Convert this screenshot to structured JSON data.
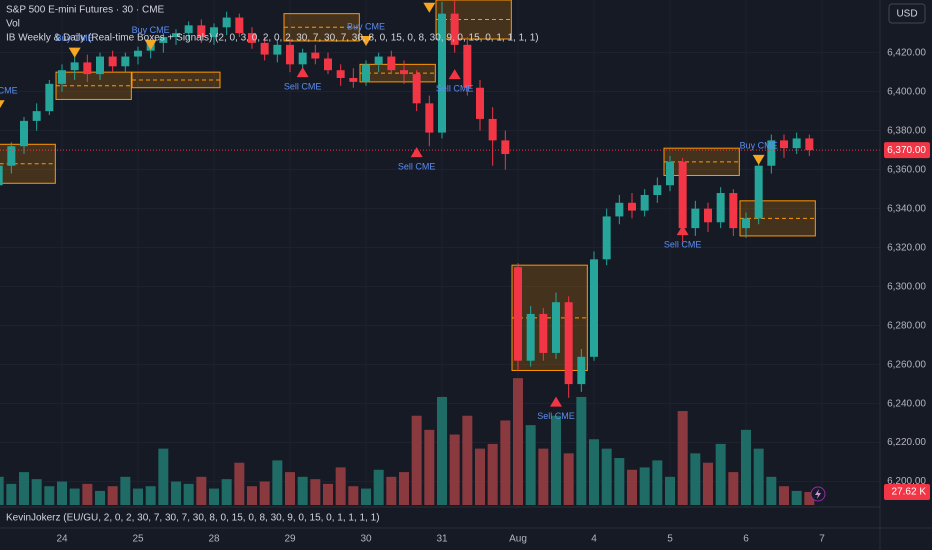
{
  "chart_data": {
    "type": "candlestick",
    "title": "S&P 500 E-mini Futures · 30 · CME",
    "volume_title": "Vol",
    "indicator_title": "IB Weekly & Daily (Real-time Boxes + Signals) (2, 0, 3, 0, 2, 0, 2, 30, 7, 30, 7, 30, 8, 0, 15, 0, 8, 30, 9, 0, 15, 0, 1, 1, 1, 1)",
    "lower_indicator_title": "KevinJokerz (EU/GU, 2, 0, 2, 30, 7, 30, 7, 30, 8, 0, 15, 0, 8, 30, 9, 0, 15, 0, 1, 1, 1, 1)",
    "currency": "USD",
    "categories": [
      null,
      null,
      null,
      null,
      null,
      "24",
      null,
      null,
      null,
      null,
      null,
      "25",
      null,
      null,
      null,
      null,
      null,
      "28",
      null,
      null,
      null,
      null,
      null,
      "29",
      null,
      null,
      null,
      null,
      null,
      "30",
      null,
      null,
      null,
      null,
      null,
      "31",
      null,
      null,
      null,
      null,
      null,
      "Aug",
      null,
      null,
      null,
      null,
      null,
      "4",
      null,
      null,
      null,
      null,
      null,
      "5",
      null,
      null,
      null,
      null,
      null,
      "6",
      null,
      null,
      null,
      null,
      null,
      "7"
    ],
    "open": [
      6352,
      6362,
      6372,
      6385,
      6390,
      6404,
      6411,
      6415,
      6409,
      6418,
      6413,
      6418,
      6421,
      6425,
      6428,
      6430,
      6434,
      6428,
      6433,
      6438,
      6430,
      6425,
      6419,
      6424,
      6414,
      6420,
      6417,
      6411,
      6407,
      6405,
      6414,
      6418,
      6411,
      6409,
      6394,
      6379,
      6440,
      6424,
      6402,
      6386,
      6375,
      6310,
      6262,
      6286,
      6266,
      6292,
      6250,
      6264,
      6314,
      6336,
      6343,
      6339,
      6347,
      6352,
      6364,
      6330,
      6340,
      6333,
      6348,
      6330,
      6335,
      6362,
      6375,
      6371,
      6376,
      null
    ],
    "high": [
      6364,
      6374,
      6387,
      6394,
      6406,
      6414,
      6418,
      6419,
      6420,
      6421,
      6420,
      6423,
      6427,
      6430,
      6432,
      6436,
      6437,
      6435,
      6441,
      6440,
      6433,
      6428,
      6427,
      6427,
      6422,
      6424,
      6420,
      6414,
      6412,
      6416,
      6420,
      6421,
      6416,
      6411,
      6398,
      6446,
      6447,
      6428,
      6406,
      6392,
      6380,
      6312,
      6290,
      6289,
      6297,
      6295,
      6268,
      6318,
      6340,
      6347,
      6348,
      6350,
      6356,
      6367,
      6366,
      6344,
      6343,
      6351,
      6350,
      6338,
      6366,
      6378,
      6378,
      6379,
      6378,
      null
    ],
    "low": [
      6348,
      6358,
      6368,
      6380,
      6388,
      6400,
      6406,
      6405,
      6406,
      6410,
      6410,
      6414,
      6417,
      6420,
      6424,
      6427,
      6425,
      6424,
      6429,
      6428,
      6422,
      6416,
      6415,
      6410,
      6410,
      6414,
      6409,
      6403,
      6402,
      6403,
      6410,
      6409,
      6404,
      6390,
      6372,
      6376,
      6420,
      6398,
      6380,
      6362,
      6360,
      6257,
      6259,
      6262,
      6263,
      6243,
      6246,
      6262,
      6311,
      6332,
      6335,
      6336,
      6343,
      6349,
      6322,
      6326,
      6328,
      6330,
      6326,
      6325,
      6332,
      6358,
      6366,
      6368,
      6367,
      null
    ],
    "close": [
      6362,
      6372,
      6385,
      6390,
      6404,
      6411,
      6415,
      6409,
      6418,
      6413,
      6418,
      6421,
      6425,
      6428,
      6430,
      6434,
      6428,
      6433,
      6438,
      6430,
      6425,
      6419,
      6424,
      6414,
      6420,
      6417,
      6411,
      6407,
      6405,
      6414,
      6418,
      6411,
      6409,
      6394,
      6379,
      6440,
      6424,
      6402,
      6386,
      6375,
      6368,
      6262,
      6286,
      6266,
      6292,
      6250,
      6264,
      6314,
      6336,
      6343,
      6339,
      6347,
      6352,
      6364,
      6330,
      6340,
      6333,
      6348,
      6330,
      6335,
      6362,
      6375,
      6371,
      6376,
      6370,
      null
    ],
    "volume": [
      60,
      45,
      70,
      55,
      40,
      50,
      35,
      45,
      30,
      40,
      60,
      35,
      40,
      120,
      50,
      45,
      60,
      35,
      55,
      90,
      40,
      50,
      95,
      70,
      60,
      55,
      45,
      80,
      40,
      35,
      75,
      60,
      70,
      190,
      160,
      230,
      150,
      190,
      120,
      130,
      180,
      270,
      170,
      120,
      190,
      110,
      230,
      140,
      120,
      100,
      75,
      80,
      95,
      60,
      200,
      110,
      90,
      130,
      70,
      160,
      120,
      60,
      40,
      30,
      27.62,
      null
    ],
    "up_color": "#26a69a",
    "down_color": "#f23645",
    "volume_up_color": "#1f6b65",
    "volume_down_color": "#8a3a3f",
    "box_color": "#ff9800",
    "ylim": [
      6188,
      6447
    ],
    "volume_ylim": [
      0,
      1075
    ],
    "yticks": [
      {
        "value": 6420,
        "label": "6,420.00"
      },
      {
        "value": 6400,
        "label": "6,400.00"
      },
      {
        "value": 6380,
        "label": "6,380.00"
      },
      {
        "value": 6360,
        "label": "6,360.00"
      },
      {
        "value": 6340,
        "label": "6,340.00"
      },
      {
        "value": 6320,
        "label": "6,320.00"
      },
      {
        "value": 6300,
        "label": "6,300.00"
      },
      {
        "value": 6280,
        "label": "6,280.00"
      },
      {
        "value": 6260,
        "label": "6,260.00"
      },
      {
        "value": 6240,
        "label": "6,240.00"
      },
      {
        "value": 6220,
        "label": "6,220.00"
      },
      {
        "value": 6200,
        "label": "6,200.00"
      }
    ],
    "grid": true,
    "last_price": {
      "value": 6370,
      "label": "6,370.00"
    },
    "last_volume": {
      "value": 27.62,
      "label": "27.62 K"
    },
    "boxes": [
      {
        "start": 0,
        "end": 4,
        "top": 6373,
        "bottom": 6353
      },
      {
        "start": 5,
        "end": 10,
        "top": 6410,
        "bottom": 6396
      },
      {
        "start": 11,
        "end": 17,
        "top": 6410,
        "bottom": 6402
      },
      {
        "start": 23,
        "end": 28,
        "top": 6440,
        "bottom": 6426
      },
      {
        "start": 29,
        "end": 34,
        "top": 6414,
        "bottom": 6405
      },
      {
        "start": 35,
        "end": 40,
        "top": 6447,
        "bottom": 6427
      },
      {
        "start": 41,
        "end": 46,
        "top": 6311,
        "bottom": 6257
      },
      {
        "start": 53,
        "end": 58,
        "top": 6371,
        "bottom": 6357
      },
      {
        "start": 59,
        "end": 64,
        "top": 6344,
        "bottom": 6326
      }
    ],
    "signals": [
      {
        "label": "Buy CME",
        "index": 0,
        "price": 6393
      },
      {
        "label": "Buy CME",
        "index": 6,
        "price": 6420
      },
      {
        "label": "Buy CME",
        "index": 12,
        "price": 6424
      },
      {
        "label": "Buy CME",
        "index": 29,
        "price": 6426
      },
      {
        "label": "Buy CME",
        "index": 34,
        "price": 6443
      },
      {
        "label": "Buy CME",
        "index": 60,
        "price": 6365
      },
      {
        "label": "Sell CME",
        "index": 24,
        "price": 6410
      },
      {
        "label": "Sell CME",
        "index": 33,
        "price": 6369
      },
      {
        "label": "Sell CME",
        "index": 36,
        "price": 6409
      },
      {
        "label": "Sell CME",
        "index": 44,
        "price": 6241
      },
      {
        "label": "Sell CME",
        "index": 54,
        "price": 6329
      }
    ]
  }
}
